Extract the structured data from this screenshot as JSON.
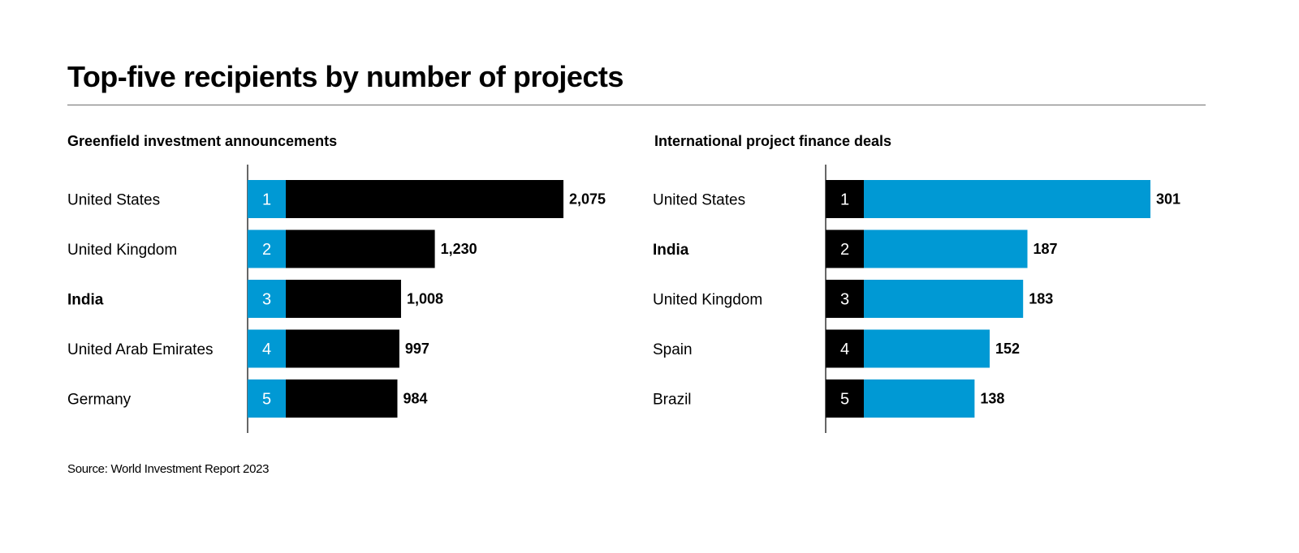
{
  "title": "Top-five recipients by number of projects",
  "source": "Source: World Investment Report 2023",
  "colors": {
    "black": "#000000",
    "blue": "#0099d4",
    "axis": "#000000",
    "rule": "#6e6e6e"
  },
  "chart_data": [
    {
      "type": "bar",
      "orientation": "horizontal",
      "title": "Greenfield investment announcements",
      "categories": [
        "United States",
        "United Kingdom",
        "India",
        "United Arab Emirates",
        "Germany"
      ],
      "ranks": [
        "1",
        "2",
        "3",
        "4",
        "5"
      ],
      "values": [
        2075,
        1230,
        1008,
        997,
        984
      ],
      "value_labels": [
        "2,075",
        "1,230",
        "1,008",
        "997",
        "984"
      ],
      "highlight": "India",
      "bar_color": "#000000",
      "rank_color": "#0099d4",
      "xlim": [
        0,
        2075
      ]
    },
    {
      "type": "bar",
      "orientation": "horizontal",
      "title": "International project finance deals",
      "categories": [
        "United States",
        "India",
        "United Kingdom",
        "Spain",
        "Brazil"
      ],
      "ranks": [
        "1",
        "2",
        "3",
        "4",
        "5"
      ],
      "values": [
        301,
        187,
        183,
        152,
        138
      ],
      "value_labels": [
        "301",
        "187",
        "183",
        "152",
        "138"
      ],
      "highlight": "India",
      "bar_color": "#0099d4",
      "rank_color": "#000000",
      "xlim": [
        0,
        301
      ]
    }
  ]
}
